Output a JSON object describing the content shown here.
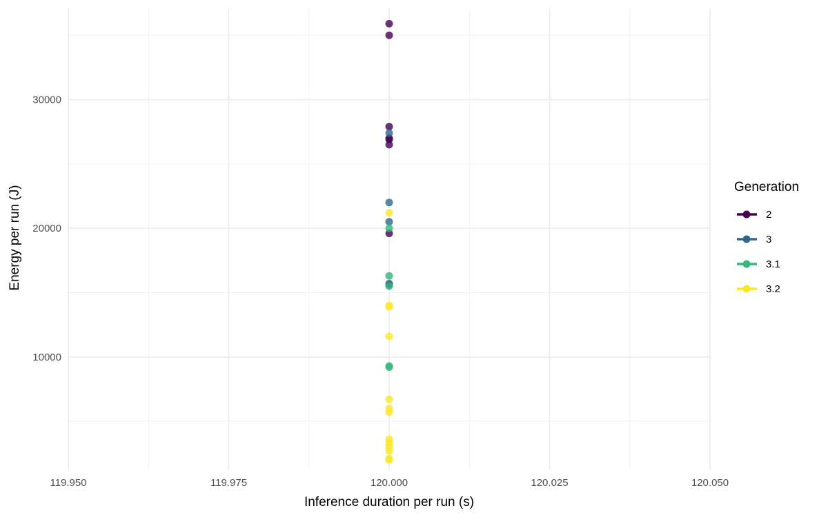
{
  "chart_data": {
    "type": "scatter",
    "title": "",
    "xlabel": "Inference duration per run (s)",
    "ylabel": "Energy per run (J)",
    "xlim": [
      119.95,
      120.05
    ],
    "ylim": [
      1200,
      37100
    ],
    "x_ticks": [
      119.95,
      119.975,
      120.0,
      120.025,
      120.05
    ],
    "x_tick_labels": [
      "119.950",
      "119.975",
      "120.000",
      "120.025",
      "120.050"
    ],
    "y_ticks": [
      10000,
      20000,
      30000
    ],
    "y_tick_labels": [
      "10000",
      "20000",
      "30000"
    ],
    "grid": true,
    "legend": {
      "title": "Generation",
      "position": "right"
    },
    "series": [
      {
        "name": "2",
        "color": "#440154",
        "x": [
          120,
          120,
          120,
          120,
          120,
          120,
          120
        ],
        "y": [
          35900,
          35000,
          27900,
          27000,
          26900,
          26500,
          19600
        ]
      },
      {
        "name": "3",
        "color": "#31688E",
        "x": [
          120,
          120,
          120,
          120,
          120
        ],
        "y": [
          27400,
          22000,
          20500,
          15700,
          15600
        ]
      },
      {
        "name": "3.1",
        "color": "#35B779",
        "x": [
          120,
          120,
          120,
          120,
          120
        ],
        "y": [
          20000,
          16300,
          15500,
          9300,
          9200
        ]
      },
      {
        "name": "3.2",
        "color": "#FDE725",
        "x": [
          120,
          120,
          120,
          120,
          120,
          120,
          120,
          120,
          120,
          120,
          120,
          120,
          120
        ],
        "y": [
          21200,
          14000,
          13900,
          11600,
          6700,
          6000,
          5700,
          3600,
          3300,
          3000,
          2700,
          2100,
          2000
        ]
      }
    ]
  }
}
